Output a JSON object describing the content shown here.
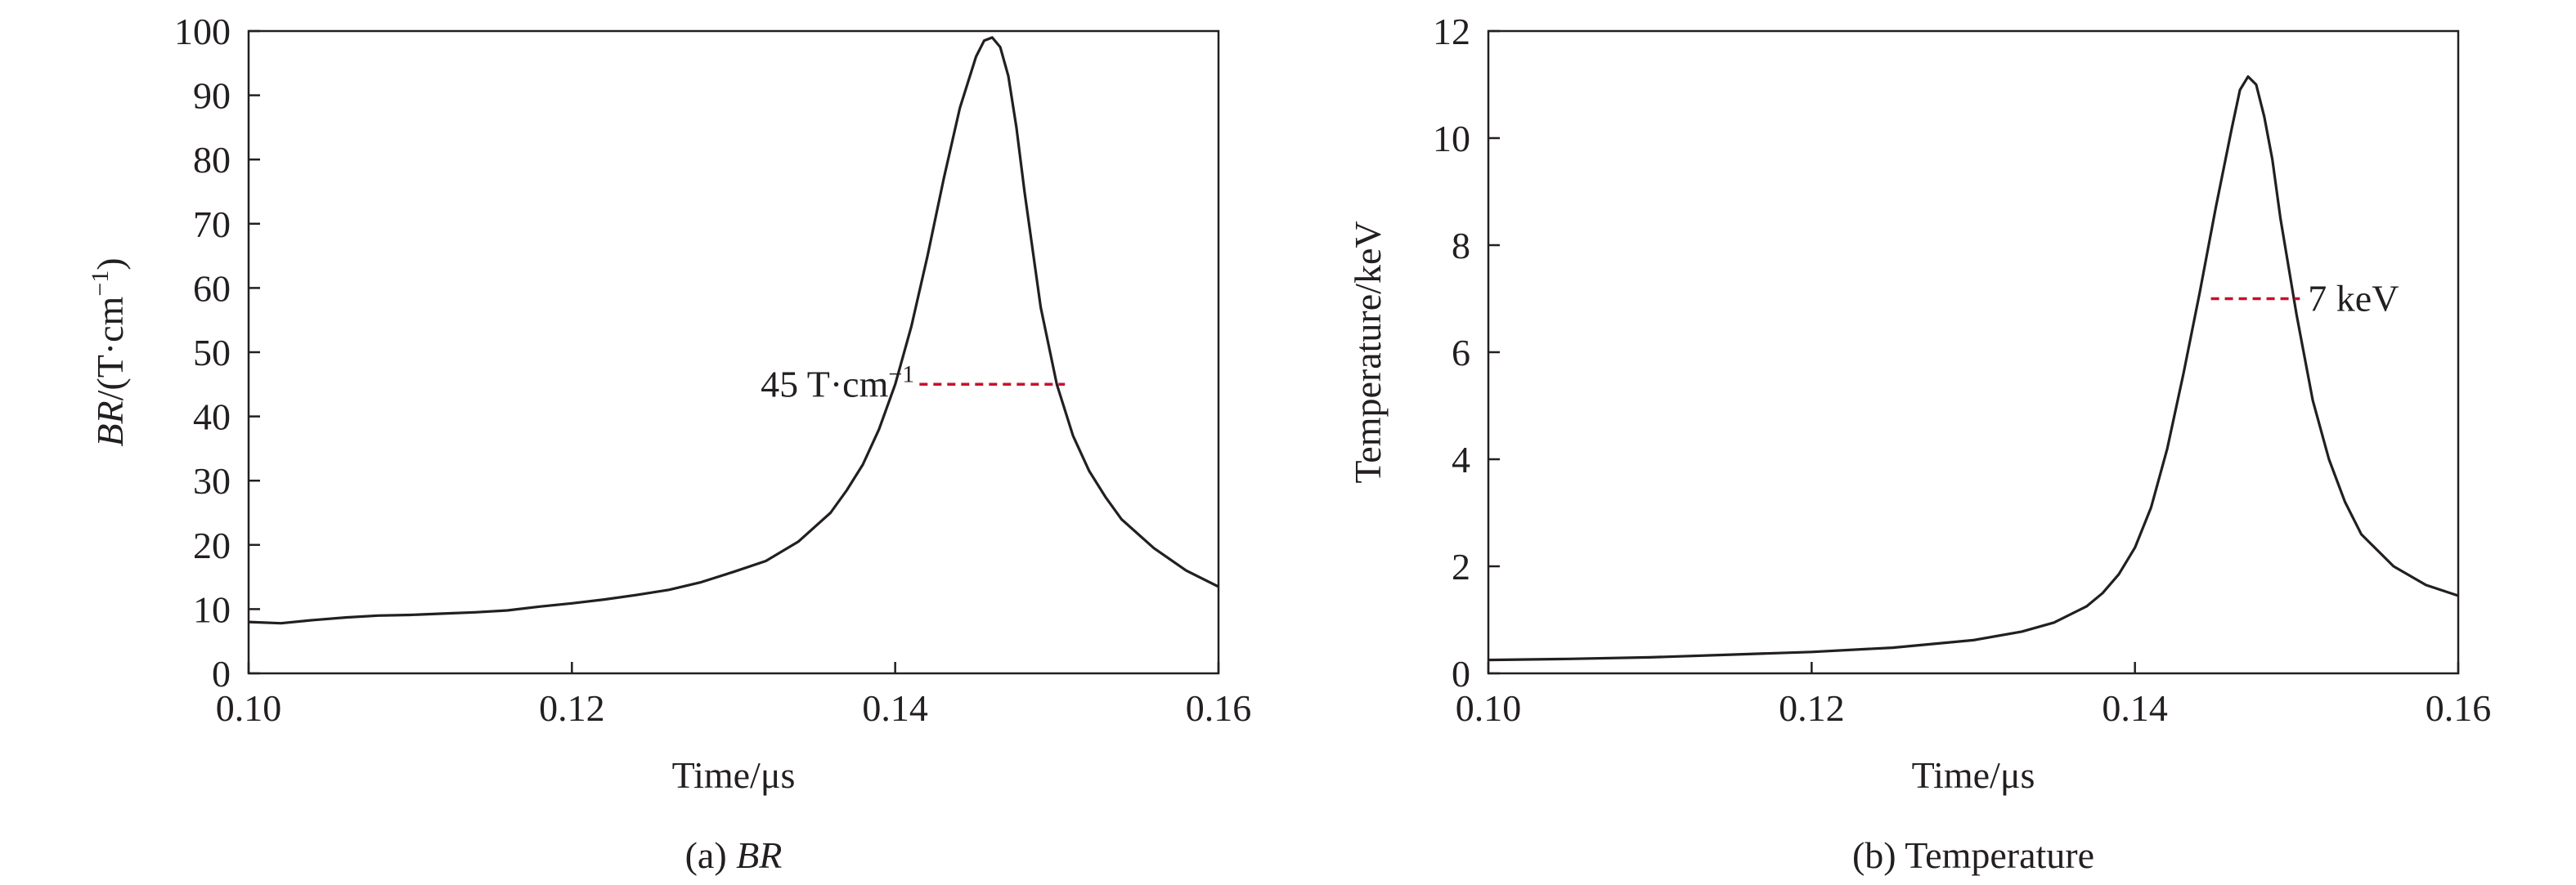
{
  "chart_data": [
    {
      "type": "line",
      "caption_prefix": "(a) ",
      "caption_name": "BR",
      "xlabel": "Time/μs",
      "ylabel_var": "BR",
      "ylabel_unit_prefix": "/(T·cm",
      "ylabel_unit_exp": "−1",
      "ylabel_unit_suffix": ")",
      "xlim": [
        0.1,
        0.16
      ],
      "ylim": [
        0,
        100
      ],
      "xticks": [
        0.1,
        0.12,
        0.14,
        0.16
      ],
      "xtick_labels": [
        "0.10",
        "0.12",
        "0.14",
        "0.16"
      ],
      "yticks": [
        0,
        10,
        20,
        30,
        40,
        50,
        60,
        70,
        80,
        90,
        100
      ],
      "ytick_labels": [
        "0",
        "10",
        "20",
        "30",
        "40",
        "50",
        "60",
        "70",
        "80",
        "90",
        "100"
      ],
      "grid": false,
      "series": [
        {
          "color": "#231f20",
          "x": [
            0.1,
            0.102,
            0.104,
            0.106,
            0.108,
            0.11,
            0.112,
            0.114,
            0.116,
            0.118,
            0.12,
            0.122,
            0.124,
            0.126,
            0.128,
            0.13,
            0.132,
            0.134,
            0.136,
            0.137,
            0.138,
            0.139,
            0.14,
            0.141,
            0.142,
            0.143,
            0.144,
            0.145,
            0.1455,
            0.146,
            0.1465,
            0.147,
            0.1475,
            0.148,
            0.149,
            0.15,
            0.151,
            0.152,
            0.153,
            0.154,
            0.156,
            0.158,
            0.16
          ],
          "y": [
            8.0,
            7.8,
            8.3,
            8.7,
            9.0,
            9.1,
            9.3,
            9.5,
            9.8,
            10.4,
            10.9,
            11.5,
            12.2,
            13.0,
            14.2,
            15.8,
            17.5,
            20.5,
            25.0,
            28.5,
            32.5,
            38.0,
            45.0,
            54.0,
            65.0,
            77.0,
            88.0,
            96.0,
            98.5,
            99.0,
            97.5,
            93.0,
            85.0,
            75.0,
            57.0,
            45.0,
            37.0,
            31.5,
            27.5,
            24.0,
            19.5,
            16.0,
            13.5
          ]
        }
      ],
      "annotation": {
        "value": 45,
        "x_start": 0.1415,
        "x_end": 0.1505,
        "color": "#c8102e",
        "label_number": "45 T·cm",
        "label_exp": "−1"
      }
    },
    {
      "type": "line",
      "caption_prefix": "(b) ",
      "caption_name": "Temperature",
      "xlabel": "Time/μs",
      "ylabel": "Temperature/keV",
      "xlim": [
        0.1,
        0.16
      ],
      "ylim": [
        0,
        12
      ],
      "xticks": [
        0.1,
        0.12,
        0.14,
        0.16
      ],
      "xtick_labels": [
        "0.10",
        "0.12",
        "0.14",
        "0.16"
      ],
      "yticks": [
        0,
        2,
        4,
        6,
        8,
        10,
        12
      ],
      "ytick_labels": [
        "0",
        "2",
        "4",
        "6",
        "8",
        "10",
        "12"
      ],
      "grid": false,
      "series": [
        {
          "color": "#231f20",
          "x": [
            0.1,
            0.105,
            0.11,
            0.115,
            0.12,
            0.125,
            0.13,
            0.133,
            0.135,
            0.137,
            0.138,
            0.139,
            0.14,
            0.141,
            0.142,
            0.143,
            0.144,
            0.145,
            0.146,
            0.1465,
            0.147,
            0.1475,
            0.148,
            0.1485,
            0.149,
            0.15,
            0.151,
            0.152,
            0.153,
            0.154,
            0.156,
            0.158,
            0.16
          ],
          "y": [
            0.25,
            0.27,
            0.3,
            0.35,
            0.4,
            0.48,
            0.62,
            0.78,
            0.95,
            1.25,
            1.5,
            1.85,
            2.35,
            3.1,
            4.2,
            5.6,
            7.1,
            8.7,
            10.2,
            10.9,
            11.15,
            11.0,
            10.4,
            9.6,
            8.5,
            6.7,
            5.1,
            4.0,
            3.2,
            2.6,
            2.0,
            1.65,
            1.45
          ]
        }
      ],
      "annotation": {
        "value": 7,
        "x_start": 0.1447,
        "x_end": 0.1502,
        "color": "#c8102e",
        "label": "7 keV"
      }
    }
  ]
}
